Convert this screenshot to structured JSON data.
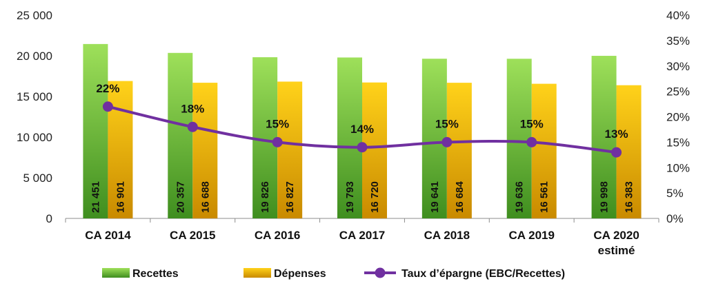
{
  "chart_data": {
    "type": "bar",
    "categories": [
      [
        "CA 2014"
      ],
      [
        "CA 2015"
      ],
      [
        "CA 2016"
      ],
      [
        "CA 2017"
      ],
      [
        "CA 2018"
      ],
      [
        "CA 2019"
      ],
      [
        "CA 2020",
        "estimé"
      ]
    ],
    "series": [
      {
        "name": "Recettes",
        "axis": "left",
        "values": [
          21451,
          20357,
          19826,
          19793,
          19641,
          19636,
          19998
        ],
        "labels": [
          "21 451",
          "20 357",
          "19 826",
          "19 793",
          "19 641",
          "19 636",
          "19 998"
        ],
        "color_top": "#9ee05a",
        "color_bottom": "#3f8e1f"
      },
      {
        "name": "Dépenses",
        "axis": "left",
        "values": [
          16901,
          16688,
          16827,
          16720,
          16684,
          16561,
          16383
        ],
        "labels": [
          "16 901",
          "16 688",
          "16 827",
          "16 720",
          "16 684",
          "16 561",
          "16 383"
        ],
        "color_top": "#ffd21a",
        "color_bottom": "#c98a00"
      },
      {
        "name": "Taux d’épargne (EBC/Recettes)",
        "type": "line",
        "axis": "right",
        "values": [
          22,
          18,
          15,
          14,
          15,
          15,
          13
        ],
        "labels": [
          "22%",
          "18%",
          "15%",
          "14%",
          "15%",
          "15%",
          "13%"
        ],
        "color": "#7030a0"
      }
    ],
    "y_left": {
      "min": 0,
      "max": 25000,
      "ticks": [
        0,
        5000,
        10000,
        15000,
        20000,
        25000
      ],
      "tick_labels": [
        "0",
        "5 000",
        "10 000",
        "15 000",
        "20 000",
        "25 000"
      ]
    },
    "y_right": {
      "min": 0,
      "max": 40,
      "ticks": [
        0,
        5,
        10,
        15,
        20,
        25,
        30,
        35,
        40
      ],
      "tick_labels": [
        "0%",
        "5%",
        "10%",
        "15%",
        "20%",
        "25%",
        "30%",
        "35%",
        "40%"
      ]
    },
    "grid": false,
    "legend_position": "bottom"
  }
}
